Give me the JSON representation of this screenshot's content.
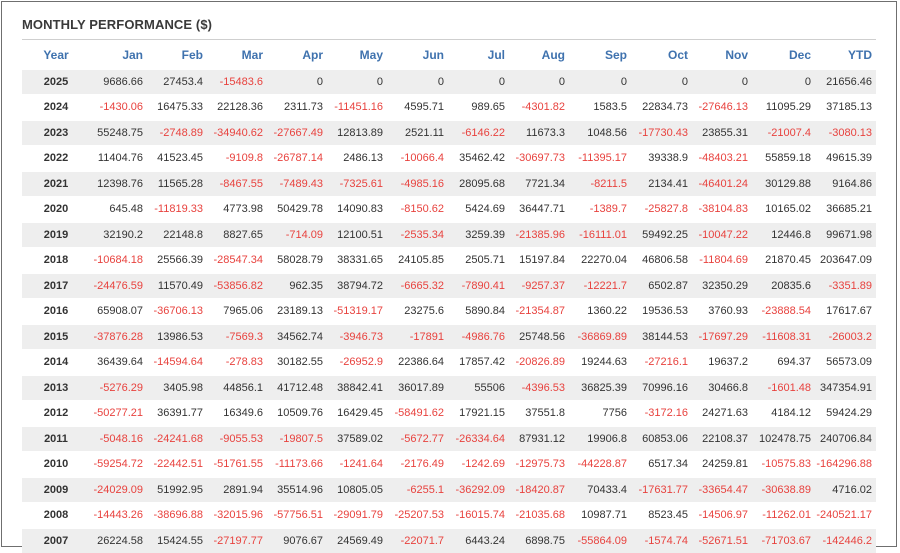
{
  "title": "MONTHLY PERFORMANCE ($)",
  "colors": {
    "header": "#3f72ae",
    "negative": "#e8423e",
    "stripe": "#eeeeee"
  },
  "headers": [
    "Year",
    "Jan",
    "Feb",
    "Mar",
    "Apr",
    "May",
    "Jun",
    "Jul",
    "Aug",
    "Sep",
    "Oct",
    "Nov",
    "Dec",
    "YTD"
  ],
  "rows": [
    [
      "2025",
      "9686.66",
      "27453.4",
      "-15483.6",
      "0",
      "0",
      "0",
      "0",
      "0",
      "0",
      "0",
      "0",
      "0",
      "21656.46"
    ],
    [
      "2024",
      "-1430.06",
      "16475.33",
      "22128.36",
      "2311.73",
      "-11451.16",
      "4595.71",
      "989.65",
      "-4301.82",
      "1583.5",
      "22834.73",
      "-27646.13",
      "11095.29",
      "37185.13"
    ],
    [
      "2023",
      "55248.75",
      "-2748.89",
      "-34940.62",
      "-27667.49",
      "12813.89",
      "2521.11",
      "-6146.22",
      "11673.3",
      "1048.56",
      "-17730.43",
      "23855.31",
      "-21007.4",
      "-3080.13"
    ],
    [
      "2022",
      "11404.76",
      "41523.45",
      "-9109.8",
      "-26787.14",
      "2486.13",
      "-10066.4",
      "35462.42",
      "-30697.73",
      "-11395.17",
      "39338.9",
      "-48403.21",
      "55859.18",
      "49615.39"
    ],
    [
      "2021",
      "12398.76",
      "11565.28",
      "-8467.55",
      "-7489.43",
      "-7325.61",
      "-4985.16",
      "28095.68",
      "7721.34",
      "-8211.5",
      "2134.41",
      "-46401.24",
      "30129.88",
      "9164.86"
    ],
    [
      "2020",
      "645.48",
      "-11819.33",
      "4773.98",
      "50429.78",
      "14090.83",
      "-8150.62",
      "5424.69",
      "36447.71",
      "-1389.7",
      "-25827.8",
      "-38104.83",
      "10165.02",
      "36685.21"
    ],
    [
      "2019",
      "32190.2",
      "22148.8",
      "8827.65",
      "-714.09",
      "12100.51",
      "-2535.34",
      "3259.39",
      "-21385.96",
      "-16111.01",
      "59492.25",
      "-10047.22",
      "12446.8",
      "99671.98"
    ],
    [
      "2018",
      "-10684.18",
      "25566.39",
      "-28547.34",
      "58028.79",
      "38331.65",
      "24105.85",
      "2505.71",
      "15197.84",
      "22270.04",
      "46806.58",
      "-11804.69",
      "21870.45",
      "203647.09"
    ],
    [
      "2017",
      "-24476.59",
      "11570.49",
      "-53856.82",
      "962.35",
      "38794.72",
      "-6665.32",
      "-7890.41",
      "-9257.37",
      "-12221.7",
      "6502.87",
      "32350.29",
      "20835.6",
      "-3351.89"
    ],
    [
      "2016",
      "65908.07",
      "-36706.13",
      "7965.06",
      "23189.13",
      "-51319.17",
      "23275.6",
      "5890.84",
      "-21354.87",
      "1360.22",
      "19536.53",
      "3760.93",
      "-23888.54",
      "17617.67"
    ],
    [
      "2015",
      "-37876.28",
      "13986.53",
      "-7569.3",
      "34562.74",
      "-3946.73",
      "-17891",
      "-4986.76",
      "25748.56",
      "-36869.89",
      "38144.53",
      "-17697.29",
      "-11608.31",
      "-26003.2"
    ],
    [
      "2014",
      "36439.64",
      "-14594.64",
      "-278.83",
      "30182.55",
      "-26952.9",
      "22386.64",
      "17857.42",
      "-20826.89",
      "19244.63",
      "-27216.1",
      "19637.2",
      "694.37",
      "56573.09"
    ],
    [
      "2013",
      "-5276.29",
      "3405.98",
      "44856.1",
      "41712.48",
      "38842.41",
      "36017.89",
      "55506",
      "-4396.53",
      "36825.39",
      "70996.16",
      "30466.8",
      "-1601.48",
      "347354.91"
    ],
    [
      "2012",
      "-50277.21",
      "36391.77",
      "16349.6",
      "10509.76",
      "16429.45",
      "-58491.62",
      "17921.15",
      "37551.8",
      "7756",
      "-3172.16",
      "24271.63",
      "4184.12",
      "59424.29"
    ],
    [
      "2011",
      "-5048.16",
      "-24241.68",
      "-9055.53",
      "-19807.5",
      "37589.02",
      "-5672.77",
      "-26334.64",
      "87931.12",
      "19906.8",
      "60853.06",
      "22108.37",
      "102478.75",
      "240706.84"
    ],
    [
      "2010",
      "-59254.72",
      "-22442.51",
      "-51761.55",
      "-11173.66",
      "-1241.64",
      "-2176.49",
      "-1242.69",
      "-12975.73",
      "-44228.87",
      "6517.34",
      "24259.81",
      "-10575.83",
      "-164296.88"
    ],
    [
      "2009",
      "-24029.09",
      "51992.95",
      "2891.94",
      "35514.96",
      "10805.05",
      "-6255.1",
      "-36292.09",
      "-18420.87",
      "70433.4",
      "-17631.77",
      "-33654.47",
      "-30638.89",
      "4716.02"
    ],
    [
      "2008",
      "-14443.26",
      "-38696.88",
      "-32015.96",
      "-57756.51",
      "-29091.79",
      "-25207.53",
      "-16015.74",
      "-21035.68",
      "10987.71",
      "8523.45",
      "-14506.97",
      "-11262.01",
      "-240521.17"
    ],
    [
      "2007",
      "26224.58",
      "15424.55",
      "-27197.77",
      "9076.67",
      "24569.49",
      "-22071.7",
      "6443.24",
      "6898.75",
      "-55864.09",
      "-1574.74",
      "-52671.51",
      "-71703.67",
      "-142446.2"
    ]
  ]
}
